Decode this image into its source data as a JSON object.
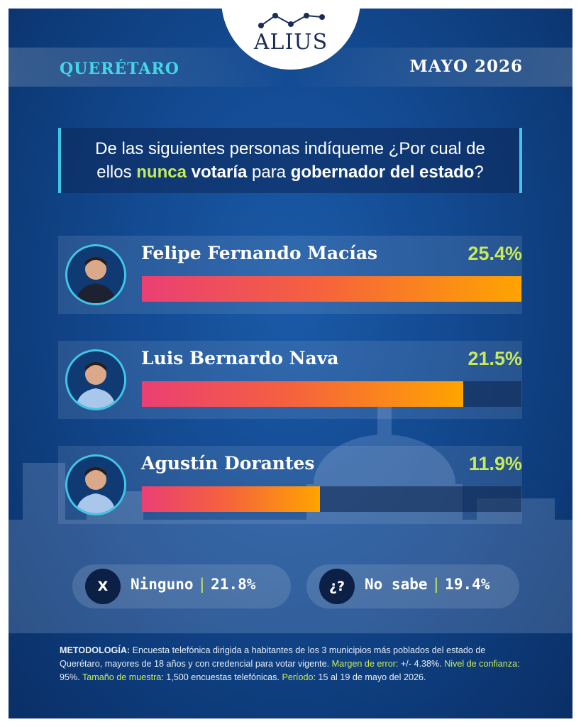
{
  "brand": {
    "logo_text": "ALIUS"
  },
  "header": {
    "state": "QUERÉTARO",
    "date": "MAYO 2026"
  },
  "question": {
    "line1": "De las siguientes personas indíqueme  ¿Por cual de",
    "part_a": "ellos ",
    "highlight1": "nunca",
    "bold1": "votaría",
    "part_b": " para ",
    "bold2": "gobernador del estado",
    "part_c": "?"
  },
  "chart_data": {
    "type": "bar",
    "categories": [
      "Felipe Fernando Macías",
      "Luis Bernardo Nava",
      "Agustín Dorantes"
    ],
    "values": [
      25.4,
      21.5,
      11.9
    ],
    "value_labels": [
      "25.4%",
      "21.5%",
      "11.9%"
    ],
    "ylim": [
      0,
      25.4
    ],
    "colors": {
      "bar_start": "#ea3f74",
      "bar_end": "#ffa400",
      "value_text": "#c7ea5a"
    }
  },
  "others": [
    {
      "icon": "X",
      "label": "Ninguno",
      "value": "21.8%"
    },
    {
      "icon": "¿?",
      "label": "No sabe",
      "value": "19.4%"
    }
  ],
  "methodology": {
    "k1": "METODOLOGÍA:",
    "t1": " Encuesta telefónica dirigida a habitantes de los 3 municipios más poblados del estado de Querétaro, mayores de 18 años y con credencial para votar vigente. ",
    "k2": "Margen de error",
    "t2": ": +/- 4.38%. ",
    "k3": "Nivel de confianza",
    "t3": ": 95%. ",
    "k4": "Tamaño de muestra",
    "t4": ": 1,500 encuestas telefónicas. ",
    "k5": "Período",
    "t5": ": 15 al 19 de mayo del 2026."
  },
  "colors": {
    "accent_cyan": "#45d6e6",
    "accent_green": "#c7ea5a",
    "background": "#134a91"
  }
}
